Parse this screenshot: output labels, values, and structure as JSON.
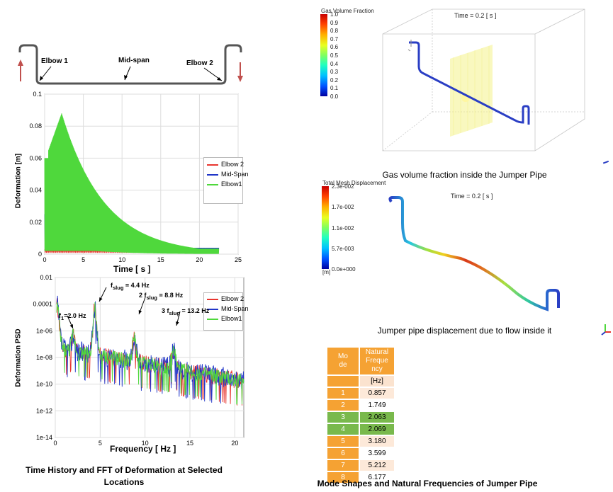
{
  "colors": {
    "elbow2": "#e8352f",
    "midspan": "#2136c8",
    "elbow1": "#4fd83c",
    "orange": "#f5a233",
    "green": "#79b94c",
    "light": "#fbe3cf",
    "arrow": "#c0504d"
  },
  "schematic": {
    "elbow1": "Elbow 1",
    "midspan": "Mid-span",
    "elbow2": "Elbow 2"
  },
  "time_chart": {
    "ylabel": "Deformation [m]",
    "xlabel": "Time [ s ]",
    "yticks": [
      "0.1",
      "0.08",
      "0.06",
      "0.04",
      "0.02",
      "0"
    ],
    "xticks": [
      "0",
      "5",
      "10",
      "15",
      "20",
      "25"
    ],
    "legend": [
      "Elbow 2",
      "Mid-Span",
      "Elbow1"
    ]
  },
  "psd_chart": {
    "ylabel": "Deformation PSD",
    "xlabel": "Frequency [ Hz ]",
    "yticks": [
      "0.01",
      "0.0001",
      "1e-06",
      "1e-08",
      "1e-10",
      "1e-12",
      "1e-14"
    ],
    "xticks": [
      "0",
      "5",
      "10",
      "15",
      "20"
    ],
    "legend": [
      "Elbow 2",
      "Mid-Span",
      "Elbow1"
    ],
    "ann": {
      "f1": {
        "p": "f",
        "s": "1",
        "r": "=2.0 Hz"
      },
      "fs": {
        "p": "f",
        "s": "slug",
        "r": " = 4.4 Hz"
      },
      "f2": {
        "p": "2 f",
        "s": "slug",
        "r": " = 8.8 Hz"
      },
      "f3": {
        "p": "3 f",
        "s": "slug",
        "r": " = 13.2 Hz"
      }
    }
  },
  "left_caption": {
    "line1": "Time History and FFT of Deformation at Selected",
    "line2": "Locations"
  },
  "gas": {
    "title": "Gas Volume Fraction",
    "ticks": [
      "1.0",
      "0.9",
      "0.8",
      "0.7",
      "0.6",
      "0.5",
      "0.4",
      "0.3",
      "0.2",
      "0.1",
      "0.0"
    ],
    "time": "Time = 0.2 [ s ]",
    "caption": "Gas volume fraction inside the Jumper Pipe"
  },
  "disp": {
    "title": "Total Mesh Displacement",
    "ticks": [
      "2.3e-002",
      "1.7e-002",
      "1.1e-002",
      "5.7e-003",
      "0.0e+000"
    ],
    "unit": "[m]",
    "time": "Time = 0.2 [ s ]",
    "caption": "Jumper pipe displacement due to flow inside it"
  },
  "modes": {
    "h1": [
      "Mo",
      "de"
    ],
    "h2": [
      "Natural",
      "Freque",
      "ncy"
    ],
    "unit": "[Hz]",
    "rows": [
      [
        "1",
        "0.857"
      ],
      [
        "2",
        "1.749"
      ],
      [
        "3",
        "2.063"
      ],
      [
        "4",
        "2.069"
      ],
      [
        "5",
        "3.180"
      ],
      [
        "6",
        "3.599"
      ],
      [
        "7",
        "5.212"
      ],
      [
        "8",
        "6.177"
      ]
    ]
  },
  "right_caption": "Mode Shapes and Natural Frequencies of Jumper Pipe",
  "chart_data": [
    {
      "type": "line",
      "title": "",
      "xlabel": "Time [ s ]",
      "ylabel": "Deformation [m]",
      "xlim": [
        0,
        25
      ],
      "ylim": [
        0,
        0.1
      ],
      "series": [
        {
          "name": "Elbow 2",
          "x": [
            0,
            2,
            5,
            10,
            15,
            20,
            22.5
          ],
          "values": [
            0.001,
            0.003,
            0.002,
            0.002,
            0.002,
            0.002,
            0.002
          ]
        },
        {
          "name": "Mid-Span",
          "x": [
            0,
            2,
            5,
            10,
            15,
            20,
            22.5
          ],
          "values": [
            0.01,
            0.02,
            0.015,
            0.01,
            0.006,
            0.005,
            0.004
          ]
        },
        {
          "name": "Elbow1",
          "x": [
            0,
            1,
            2,
            3,
            5,
            8,
            10,
            12,
            15,
            20,
            22.5
          ],
          "values": [
            0.06,
            0.07,
            0.088,
            0.08,
            0.06,
            0.04,
            0.03,
            0.02,
            0.012,
            0.005,
            0.003
          ]
        }
      ]
    },
    {
      "type": "line",
      "title": "",
      "xlabel": "Frequency [ Hz ]",
      "ylabel": "Deformation PSD",
      "xlim": [
        0,
        21
      ],
      "ylim": [
        1e-14,
        0.01
      ],
      "yscale": "log",
      "series": [
        {
          "name": "Elbow 2",
          "x": [
            0,
            2,
            4.4,
            8.8,
            13.2,
            21
          ],
          "values": [
            0.0001,
            1e-06,
            0.0001,
            1e-06,
            1e-06,
            1e-09
          ]
        },
        {
          "name": "Mid-Span",
          "x": [
            0,
            2,
            4.4,
            8.8,
            13.2,
            21
          ],
          "values": [
            0.0001,
            1e-06,
            0.0001,
            1e-06,
            1e-06,
            1e-09
          ]
        },
        {
          "name": "Elbow1",
          "x": [
            0,
            2,
            4.4,
            8.8,
            13.2,
            21
          ],
          "values": [
            0.0001,
            1e-06,
            0.0001,
            1e-06,
            1e-06,
            1e-09
          ]
        }
      ]
    },
    {
      "type": "table",
      "title": "Mode Shapes and Natural Frequencies of Jumper Pipe",
      "columns": [
        "Mode",
        "Natural Frequency [Hz]"
      ],
      "rows": [
        [
          1,
          0.857
        ],
        [
          2,
          1.749
        ],
        [
          3,
          2.063
        ],
        [
          4,
          2.069
        ],
        [
          5,
          3.18
        ],
        [
          6,
          3.599
        ],
        [
          7,
          5.212
        ],
        [
          8,
          6.177
        ]
      ]
    }
  ]
}
